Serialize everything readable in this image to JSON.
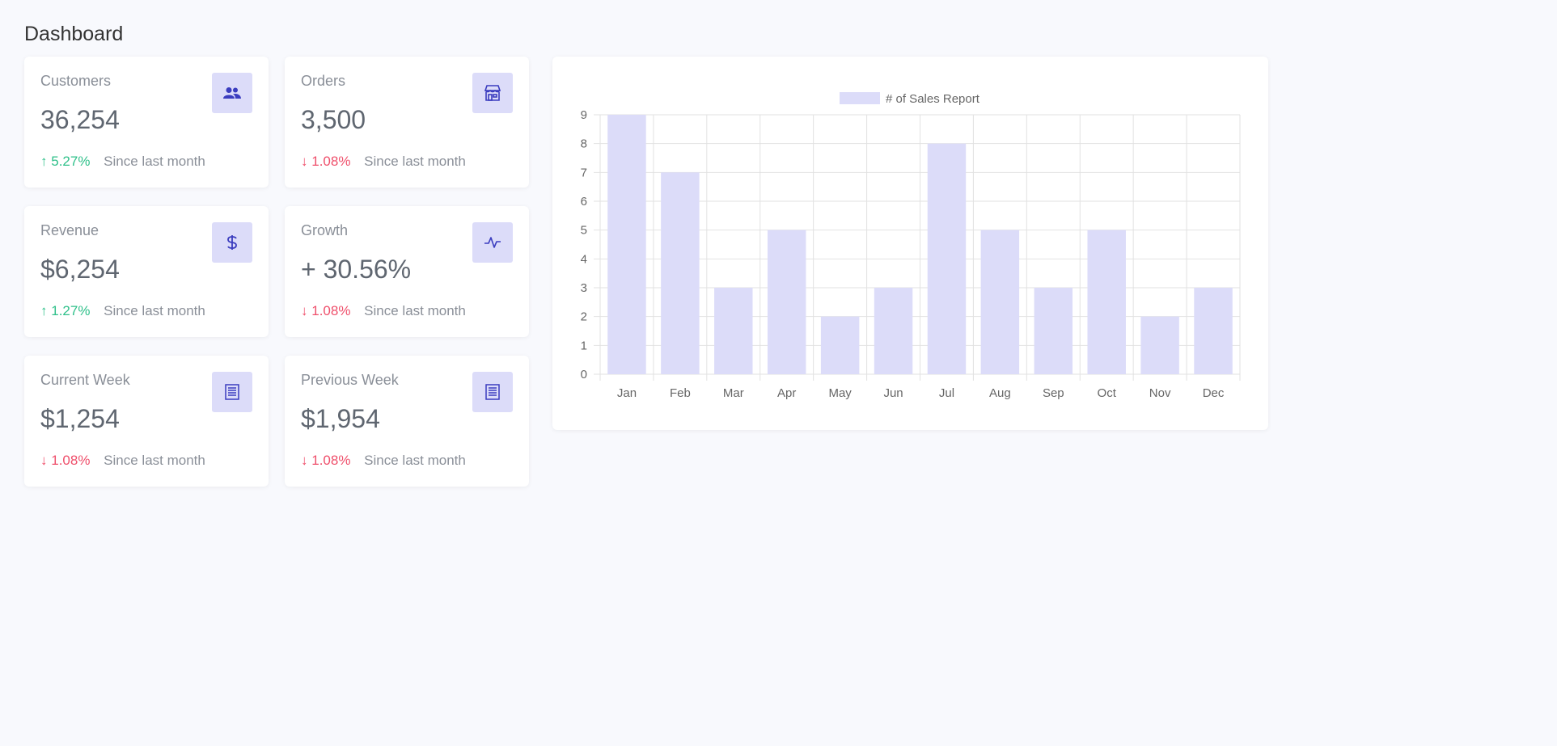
{
  "page": {
    "title": "Dashboard"
  },
  "colors": {
    "up": "#2fc08a",
    "down": "#ef4f6b",
    "icon_bg": "#dcdcf9",
    "icon_fg": "#3b3dbf",
    "bar": "#dcdcf9"
  },
  "stats": [
    {
      "label": "Customers",
      "value": "36,254",
      "direction": "up",
      "change": "5.27%",
      "since": "Since last month",
      "icon": "users-icon"
    },
    {
      "label": "Orders",
      "value": "3,500",
      "direction": "down",
      "change": "1.08%",
      "since": "Since last month",
      "icon": "store-icon"
    },
    {
      "label": "Revenue",
      "value": "$6,254",
      "direction": "up",
      "change": "1.27%",
      "since": "Since last month",
      "icon": "dollar-icon"
    },
    {
      "label": "Growth",
      "value": "+ 30.56%",
      "direction": "down",
      "change": "1.08%",
      "since": "Since last month",
      "icon": "pulse-icon"
    },
    {
      "label": "Current Week",
      "value": "$1,254",
      "direction": "down",
      "change": "1.08%",
      "since": "Since last month",
      "icon": "receipt-icon"
    },
    {
      "label": "Previous Week",
      "value": "$1,954",
      "direction": "down",
      "change": "1.08%",
      "since": "Since last month",
      "icon": "receipt-icon"
    }
  ],
  "arrows": {
    "up": "↑",
    "down": "↓"
  },
  "chart_data": {
    "type": "bar",
    "categories": [
      "Jan",
      "Feb",
      "Mar",
      "Apr",
      "May",
      "Jun",
      "Jul",
      "Aug",
      "Sep",
      "Oct",
      "Nov",
      "Dec"
    ],
    "series": [
      {
        "name": "# of Sales Report",
        "values": [
          9,
          7,
          3,
          5,
          2,
          3,
          8,
          5,
          3,
          5,
          2,
          3
        ]
      }
    ],
    "ylim": [
      0,
      9
    ],
    "yticks": [
      0,
      1,
      2,
      3,
      4,
      5,
      6,
      7,
      8,
      9
    ],
    "grid": true,
    "legend": "top-center"
  }
}
